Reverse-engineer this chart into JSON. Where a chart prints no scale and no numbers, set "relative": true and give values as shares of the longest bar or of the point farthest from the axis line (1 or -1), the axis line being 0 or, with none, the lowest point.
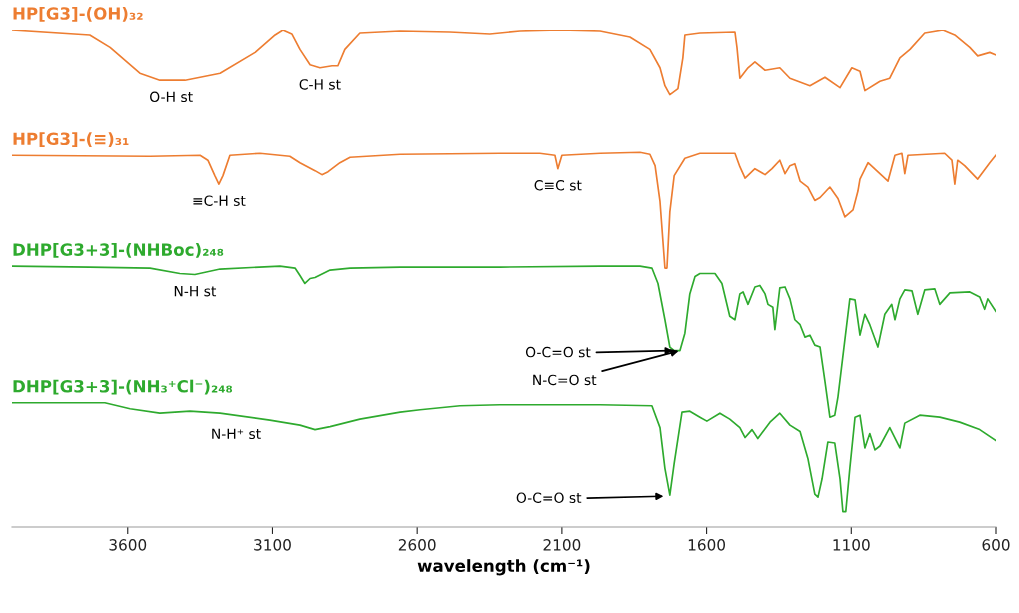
{
  "chart_data": {
    "type": "line",
    "relative": true,
    "xlabel": "wavelength (cm⁻¹)",
    "xlim": [
      4000,
      600
    ],
    "xticks": [
      3600,
      3100,
      2600,
      2100,
      1600,
      1100,
      600
    ],
    "legend": false,
    "grid": false,
    "marker": "none",
    "line_style": "solid",
    "series": [
      {
        "name": "HP[G3]-(OH)₃₂",
        "color": "#ed7d31",
        "x": [
          4000,
          3731,
          3661,
          3558,
          3489,
          3402,
          3281,
          3160,
          3091,
          3064,
          3033,
          3005,
          2970,
          2936,
          2894,
          2874,
          2850,
          2798,
          2659,
          2487,
          2349,
          2245,
          2107,
          1968,
          1865,
          1796,
          1761,
          1744,
          1727,
          1699,
          1682,
          1675,
          1623,
          1502,
          1495,
          1485,
          1457,
          1433,
          1398,
          1347,
          1312,
          1243,
          1191,
          1139,
          1098,
          1070,
          1053,
          1001,
          967,
          932,
          897,
          846,
          783,
          742,
          690,
          663,
          621,
          600
        ],
        "values": [
          1.0,
          0.99,
          0.965,
          0.913,
          0.899,
          0.899,
          0.913,
          0.955,
          0.99,
          1.0,
          0.992,
          0.961,
          0.93,
          0.924,
          0.928,
          0.928,
          0.961,
          0.994,
          0.998,
          0.996,
          0.992,
          0.998,
          1.0,
          0.998,
          0.986,
          0.961,
          0.924,
          0.888,
          0.87,
          0.882,
          0.944,
          0.99,
          0.994,
          0.996,
          0.965,
          0.903,
          0.924,
          0.936,
          0.919,
          0.924,
          0.903,
          0.888,
          0.905,
          0.884,
          0.924,
          0.917,
          0.878,
          0.897,
          0.903,
          0.944,
          0.961,
          0.994,
          1.0,
          0.99,
          0.965,
          0.948,
          0.955,
          0.95
        ]
      },
      {
        "name": "HP[G3]-(≡)₃₁",
        "color": "#ed7d31",
        "x": [
          4000,
          3523,
          3350,
          3323,
          3299,
          3285,
          3271,
          3247,
          3143,
          3040,
          3005,
          2953,
          2929,
          2908,
          2867,
          2832,
          2659,
          2314,
          2176,
          2124,
          2114,
          2100,
          1968,
          1830,
          1796,
          1778,
          1761,
          1744,
          1737,
          1727,
          1712,
          1675,
          1623,
          1502,
          1485,
          1467,
          1433,
          1398,
          1374,
          1347,
          1329,
          1312,
          1295,
          1277,
          1250,
          1226,
          1208,
          1174,
          1146,
          1122,
          1094,
          1077,
          1070,
          1042,
          1001,
          973,
          949,
          925,
          915,
          904,
          777,
          752,
          742,
          732,
          708,
          663,
          621,
          600
        ],
        "values": [
          0.748,
          0.746,
          0.748,
          0.738,
          0.707,
          0.69,
          0.707,
          0.748,
          0.752,
          0.746,
          0.733,
          0.717,
          0.709,
          0.715,
          0.733,
          0.744,
          0.75,
          0.752,
          0.752,
          0.748,
          0.721,
          0.748,
          0.752,
          0.754,
          0.75,
          0.727,
          0.655,
          0.521,
          0.521,
          0.634,
          0.707,
          0.742,
          0.752,
          0.752,
          0.725,
          0.702,
          0.721,
          0.709,
          0.721,
          0.738,
          0.711,
          0.727,
          0.731,
          0.696,
          0.684,
          0.657,
          0.663,
          0.684,
          0.661,
          0.624,
          0.638,
          0.676,
          0.7,
          0.733,
          0.711,
          0.696,
          0.748,
          0.752,
          0.711,
          0.748,
          0.752,
          0.738,
          0.69,
          0.738,
          0.727,
          0.7,
          0.733,
          0.748
        ]
      },
      {
        "name": "DHP[G3+3]-(NHBoc)₂₄₈",
        "color": "#2eaa2e",
        "x": [
          4000,
          3731,
          3523,
          3420,
          3368,
          3281,
          3074,
          3022,
          3005,
          2988,
          2970,
          2953,
          2901,
          2832,
          2659,
          2314,
          1968,
          1830,
          1789,
          1768,
          1744,
          1727,
          1712,
          1699,
          1692,
          1675,
          1658,
          1640,
          1623,
          1571,
          1547,
          1520,
          1502,
          1485,
          1474,
          1457,
          1433,
          1416,
          1398,
          1388,
          1371,
          1364,
          1347,
          1329,
          1312,
          1295,
          1277,
          1260,
          1243,
          1226,
          1208,
          1191,
          1174,
          1157,
          1146,
          1105,
          1087,
          1070,
          1053,
          1036,
          1008,
          984,
          960,
          949,
          932,
          915,
          890,
          870,
          846,
          811,
          794,
          759,
          690,
          656,
          639,
          628,
          600
        ],
        "values": [
          0.525,
          0.523,
          0.521,
          0.51,
          0.508,
          0.519,
          0.525,
          0.521,
          0.506,
          0.49,
          0.5,
          0.502,
          0.517,
          0.521,
          0.523,
          0.523,
          0.525,
          0.525,
          0.521,
          0.49,
          0.417,
          0.362,
          0.355,
          0.355,
          0.355,
          0.39,
          0.469,
          0.504,
          0.51,
          0.51,
          0.49,
          0.424,
          0.417,
          0.469,
          0.473,
          0.448,
          0.483,
          0.486,
          0.469,
          0.448,
          0.442,
          0.397,
          0.481,
          0.483,
          0.459,
          0.417,
          0.407,
          0.382,
          0.386,
          0.366,
          0.362,
          0.293,
          0.221,
          0.225,
          0.262,
          0.459,
          0.457,
          0.386,
          0.428,
          0.407,
          0.362,
          0.428,
          0.448,
          0.417,
          0.459,
          0.477,
          0.475,
          0.428,
          0.477,
          0.479,
          0.448,
          0.471,
          0.473,
          0.463,
          0.438,
          0.459,
          0.434
        ]
      },
      {
        "name": "DHP[G3+3]-(NH₃⁺Cl⁻)₂₄₈",
        "color": "#2eaa2e",
        "x": [
          4000,
          3679,
          3592,
          3489,
          3385,
          3281,
          3109,
          3005,
          2953,
          2901,
          2798,
          2659,
          2590,
          2452,
          2314,
          1968,
          1789,
          1761,
          1744,
          1727,
          1712,
          1685,
          1658,
          1623,
          1599,
          1554,
          1520,
          1485,
          1467,
          1443,
          1423,
          1381,
          1347,
          1312,
          1277,
          1250,
          1226,
          1215,
          1201,
          1181,
          1157,
          1139,
          1129,
          1119,
          1105,
          1087,
          1070,
          1053,
          1036,
          1018,
          1001,
          967,
          932,
          915,
          863,
          794,
          725,
          656,
          600
        ],
        "values": [
          0.25,
          0.25,
          0.238,
          0.229,
          0.233,
          0.229,
          0.215,
          0.205,
          0.196,
          0.202,
          0.217,
          0.231,
          0.236,
          0.244,
          0.246,
          0.246,
          0.244,
          0.2,
          0.118,
          0.064,
          0.128,
          0.231,
          0.233,
          0.221,
          0.213,
          0.229,
          0.217,
          0.2,
          0.18,
          0.196,
          0.178,
          0.211,
          0.229,
          0.205,
          0.192,
          0.138,
          0.066,
          0.06,
          0.097,
          0.171,
          0.169,
          0.097,
          0.031,
          0.031,
          0.118,
          0.221,
          0.225,
          0.159,
          0.188,
          0.155,
          0.163,
          0.2,
          0.159,
          0.209,
          0.225,
          0.221,
          0.211,
          0.196,
          0.174
        ]
      }
    ],
    "annotations": [
      {
        "text": "O-H st",
        "x": 3450,
        "y": 0.899
      },
      {
        "text": "C-H st",
        "x": 2936,
        "y": 0.924
      },
      {
        "text": "≡C-H st",
        "x": 3285,
        "y": 0.69
      },
      {
        "text": "C≡C st",
        "x": 2114,
        "y": 0.721
      },
      {
        "text": "N-H st",
        "x": 3368,
        "y": 0.508
      },
      {
        "text": "N-H⁺ st",
        "x": 3226,
        "y": 0.221
      },
      {
        "text": "O-C=O st",
        "x": 1712,
        "y": 0.355
      },
      {
        "text": "N-C=O st",
        "x": 1692,
        "y": 0.355
      },
      {
        "text": "O-C=O st",
        "x": 1744,
        "y": 0.062
      }
    ]
  }
}
